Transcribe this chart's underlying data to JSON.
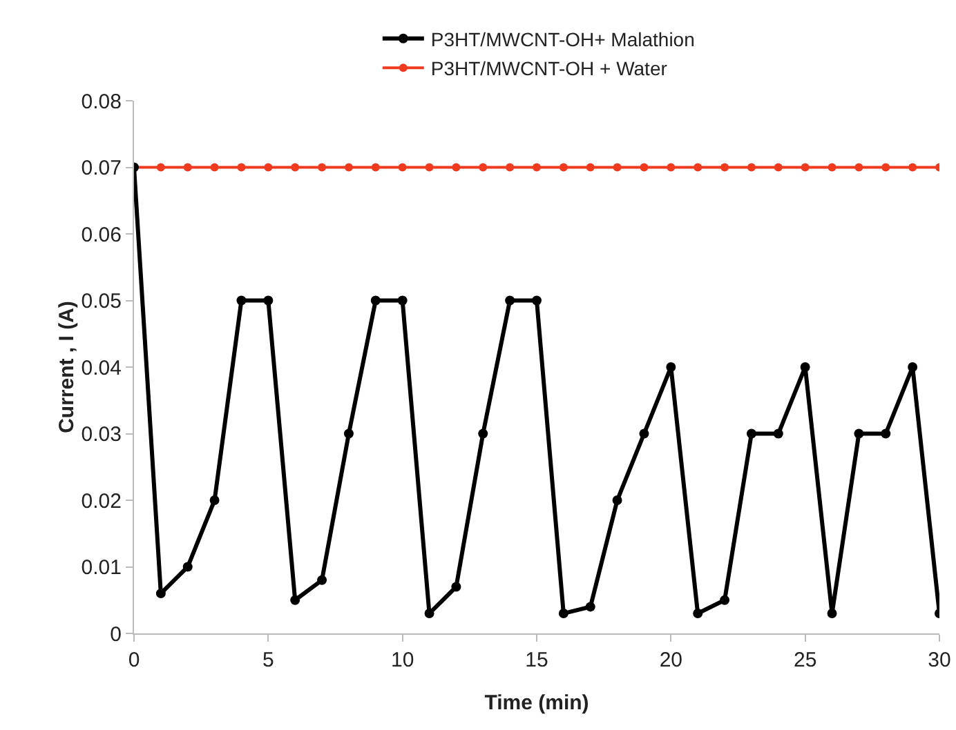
{
  "chart_data": {
    "type": "line",
    "xlabel": "Time (min)",
    "ylabel": "Current , I (A)",
    "x": [
      0,
      1,
      2,
      3,
      4,
      5,
      6,
      7,
      8,
      9,
      10,
      11,
      12,
      13,
      14,
      15,
      16,
      17,
      18,
      19,
      20,
      21,
      22,
      23,
      24,
      25,
      26,
      27,
      28,
      29,
      30
    ],
    "series": [
      {
        "name": "P3HT/MWCNT-OH+ Malathion",
        "color": "#000000",
        "values": [
          0.07,
          0.006,
          0.01,
          0.02,
          0.05,
          0.05,
          0.005,
          0.008,
          0.03,
          0.05,
          0.05,
          0.003,
          0.007,
          0.03,
          0.05,
          0.05,
          0.003,
          0.004,
          0.02,
          0.03,
          0.04,
          0.003,
          0.005,
          0.03,
          0.03,
          0.04,
          0.003,
          0.03,
          0.03,
          0.04,
          0.003
        ]
      },
      {
        "name": "P3HT/MWCNT-OH + Water",
        "color": "#ee3b1f",
        "values": [
          0.07,
          0.07,
          0.07,
          0.07,
          0.07,
          0.07,
          0.07,
          0.07,
          0.07,
          0.07,
          0.07,
          0.07,
          0.07,
          0.07,
          0.07,
          0.07,
          0.07,
          0.07,
          0.07,
          0.07,
          0.07,
          0.07,
          0.07,
          0.07,
          0.07,
          0.07,
          0.07,
          0.07,
          0.07,
          0.07,
          0.07
        ]
      }
    ],
    "xlim": [
      0,
      30
    ],
    "xticks": [
      0,
      5,
      10,
      15,
      20,
      25,
      30
    ],
    "ylim": [
      0,
      0.08
    ],
    "yticks": [
      0,
      0.01,
      0.02,
      0.03,
      0.04,
      0.05,
      0.06,
      0.07,
      0.08
    ],
    "grid": false,
    "legend": "top",
    "marker": "circle",
    "line_style": "solid"
  }
}
